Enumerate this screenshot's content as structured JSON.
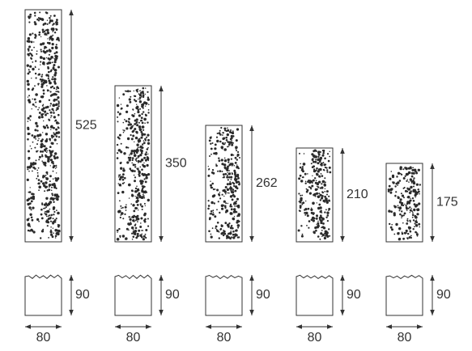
{
  "panels": [
    {
      "height": 525,
      "depth": 90,
      "width": 80
    },
    {
      "height": 350,
      "depth": 90,
      "width": 80
    },
    {
      "height": 262,
      "depth": 90,
      "width": 80
    },
    {
      "height": 210,
      "depth": 90,
      "width": 80
    },
    {
      "height": 175,
      "depth": 90,
      "width": 80
    }
  ]
}
